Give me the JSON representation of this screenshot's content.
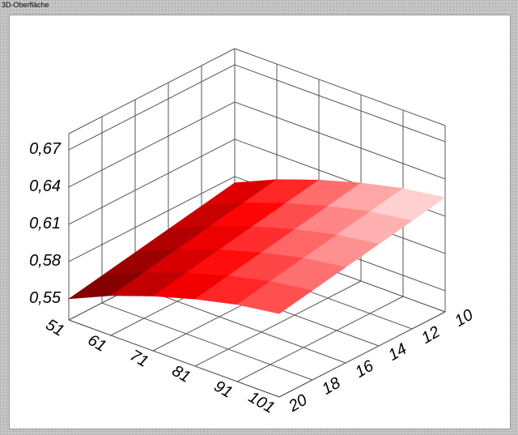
{
  "window": {
    "title": "3D-Oberfläche"
  },
  "chart_data": {
    "type": "surface",
    "x": [
      51,
      61,
      71,
      81,
      91,
      101
    ],
    "y": [
      10,
      12,
      14,
      16,
      18,
      20
    ],
    "z": [
      [
        0.575,
        0.59,
        0.602,
        0.612,
        0.62,
        0.625
      ],
      [
        0.57,
        0.585,
        0.597,
        0.607,
        0.615,
        0.62
      ],
      [
        0.565,
        0.58,
        0.592,
        0.602,
        0.61,
        0.615
      ],
      [
        0.56,
        0.575,
        0.587,
        0.597,
        0.605,
        0.61
      ],
      [
        0.555,
        0.57,
        0.582,
        0.592,
        0.6,
        0.605
      ],
      [
        0.55,
        0.565,
        0.577,
        0.587,
        0.595,
        0.6
      ]
    ],
    "xlim": [
      51,
      101
    ],
    "xticks": [
      51,
      61,
      71,
      81,
      91,
      101
    ],
    "ylim": [
      10,
      20
    ],
    "yticks": [
      10,
      12,
      14,
      16,
      18,
      20
    ],
    "zlim": [
      0.533,
      0.683
    ],
    "zticks": [
      {
        "value": 0.55,
        "label": "0,55"
      },
      {
        "value": 0.58,
        "label": "0,58"
      },
      {
        "value": 0.61,
        "label": "0,61"
      },
      {
        "value": 0.64,
        "label": "0,64"
      },
      {
        "value": 0.67,
        "label": "0,67"
      }
    ],
    "grid": true,
    "colormap": [
      "#5a0000",
      "#ff0000",
      "#fff0f0"
    ]
  }
}
